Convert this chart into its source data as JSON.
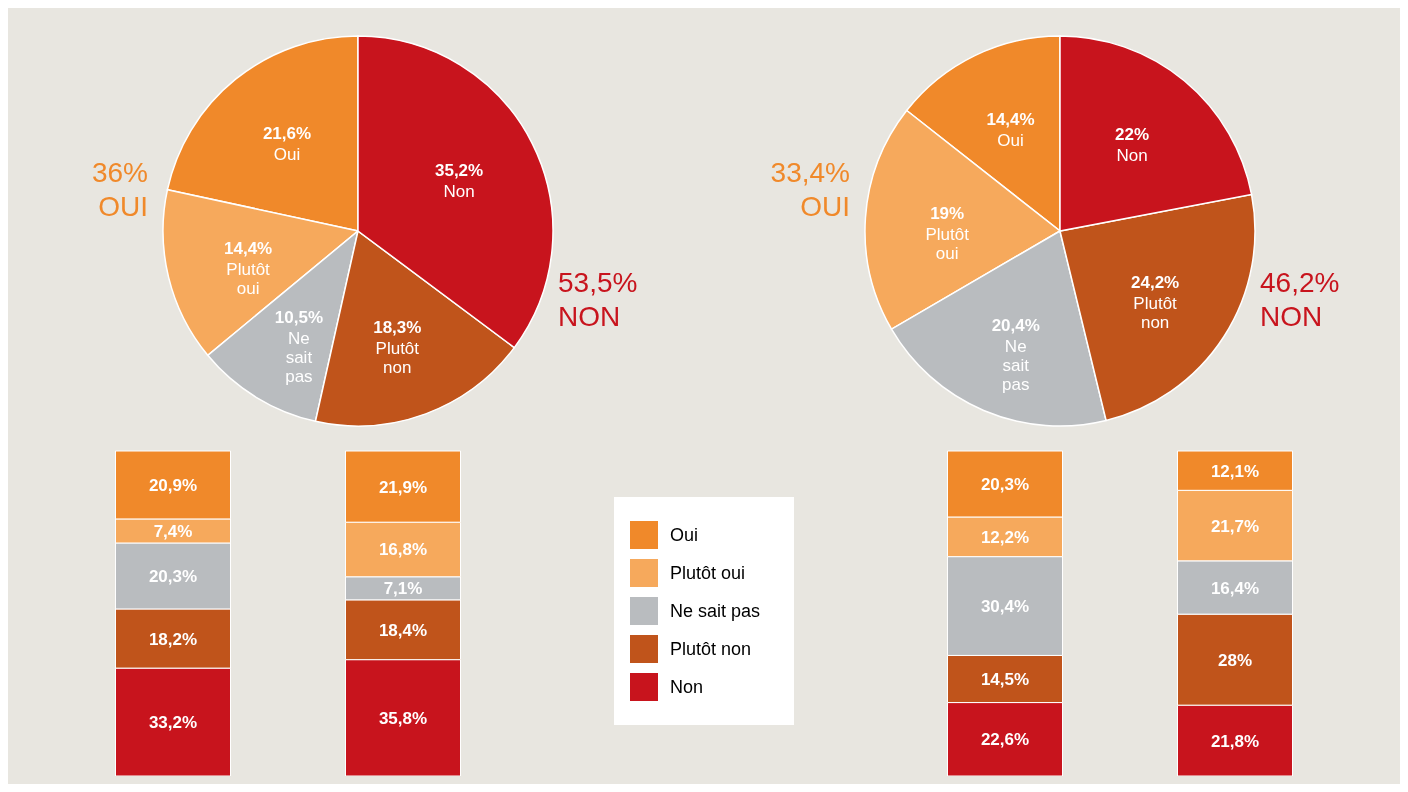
{
  "chart_data": [
    {
      "type": "pie",
      "categories": [
        "Oui",
        "Plutôt oui",
        "Ne sait pas",
        "Plutôt non",
        "Non"
      ],
      "values": [
        21.6,
        14.4,
        10.5,
        18.3,
        35.2
      ],
      "colors": [
        "#f0892a",
        "#f6a95c",
        "#b9bcbf",
        "#c0541b",
        "#c8141d"
      ],
      "value_labels": [
        "21,6%",
        "14,4%",
        "10,5%",
        "18,3%",
        "35,2%"
      ],
      "annotations": [
        "36% OUI",
        "53,5% NON"
      ]
    },
    {
      "type": "pie",
      "categories": [
        "Oui",
        "Plutôt oui",
        "Ne sait pas",
        "Plutôt non",
        "Non"
      ],
      "values": [
        14.4,
        19,
        20.4,
        24.2,
        22
      ],
      "colors": [
        "#f0892a",
        "#f6a95c",
        "#b9bcbf",
        "#c0541b",
        "#c8141d"
      ],
      "value_labels": [
        "14,4%",
        "19%",
        "20,4%",
        "24,2%",
        "22%"
      ],
      "annotations": [
        "33,4% OUI",
        "46,2% NON"
      ]
    },
    {
      "type": "bar",
      "stacked": true,
      "categories": [
        null,
        null
      ],
      "legend": "right",
      "series": [
        {
          "name": "Non",
          "color": "#c8141d",
          "values": [
            33.2,
            35.8
          ],
          "value_labels": [
            "33,2%",
            "35,8%"
          ]
        },
        {
          "name": "Plutôt non",
          "color": "#c0541b",
          "values": [
            18.2,
            18.4
          ],
          "value_labels": [
            "18,2%",
            "18,4%"
          ]
        },
        {
          "name": "Ne sait pas",
          "color": "#b9bcbf",
          "values": [
            20.3,
            7.1
          ],
          "value_labels": [
            "20,3%",
            "7,1%"
          ]
        },
        {
          "name": "Plutôt oui",
          "color": "#f6a95c",
          "values": [
            7.4,
            16.8
          ],
          "value_labels": [
            "7,4%",
            "16,8%"
          ]
        },
        {
          "name": "Oui",
          "color": "#f0892a",
          "values": [
            20.9,
            21.9
          ],
          "value_labels": [
            "20,9%",
            "21,9%"
          ]
        }
      ]
    },
    {
      "type": "bar",
      "stacked": true,
      "categories": [
        null,
        null
      ],
      "series": [
        {
          "color": "#c8141d",
          "values": [
            22.6,
            21.8
          ],
          "value_labels": [
            "22,6%",
            "21,8%"
          ]
        },
        {
          "color": "#c0541b",
          "values": [
            14.5,
            28
          ],
          "value_labels": [
            "14,5%",
            "28%"
          ]
        },
        {
          "color": "#b9bcbf",
          "values": [
            30.4,
            16.4
          ],
          "value_labels": [
            "30,4%",
            "16,4%"
          ]
        },
        {
          "color": "#f6a95c",
          "values": [
            12.2,
            21.7
          ],
          "value_labels": [
            "12,2%",
            "21,7%"
          ]
        },
        {
          "color": "#f0892a",
          "values": [
            20.3,
            12.1
          ],
          "value_labels": [
            "20,3%",
            "12,1%"
          ]
        }
      ]
    }
  ]
}
